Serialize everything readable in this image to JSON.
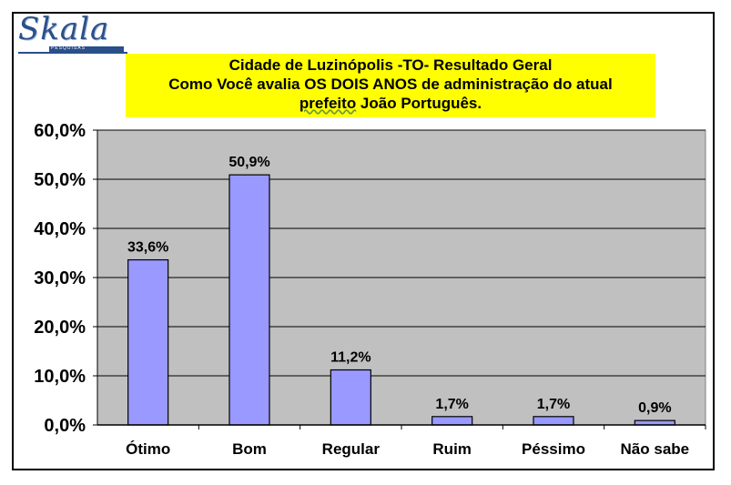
{
  "logo": {
    "name": "Skala",
    "tagline": "PESQUISAS"
  },
  "title": {
    "line1": "Cidade de Luzinópolis -TO- Resultado Geral",
    "line2": "Como Você avalia OS DOIS ANOS de administração do atual",
    "line3_word": "prefeito",
    "line3_rest": " João Português."
  },
  "colors": {
    "bar": "#9999ff",
    "plot_bg": "#c0c0c0",
    "title_bg": "#ffff00",
    "logo": "#2a4f8a"
  },
  "chart_data": {
    "type": "bar",
    "title": "Cidade de Luzinópolis -TO- Resultado Geral Como Você avalia OS DOIS ANOS de administração do atual prefeito João Português.",
    "categories": [
      "Ótimo",
      "Bom",
      "Regular",
      "Ruim",
      "Péssimo",
      "Não sabe"
    ],
    "values": [
      33.6,
      50.9,
      11.2,
      1.7,
      1.7,
      0.9
    ],
    "data_labels": [
      "33,6%",
      "50,9%",
      "11,2%",
      "1,7%",
      "1,7%",
      "0,9%"
    ],
    "yticks": [
      "0,0%",
      "10,0%",
      "20,0%",
      "30,0%",
      "40,0%",
      "50,0%",
      "60,0%"
    ],
    "ylim": [
      0,
      60
    ],
    "grid": true,
    "legend": "none"
  }
}
